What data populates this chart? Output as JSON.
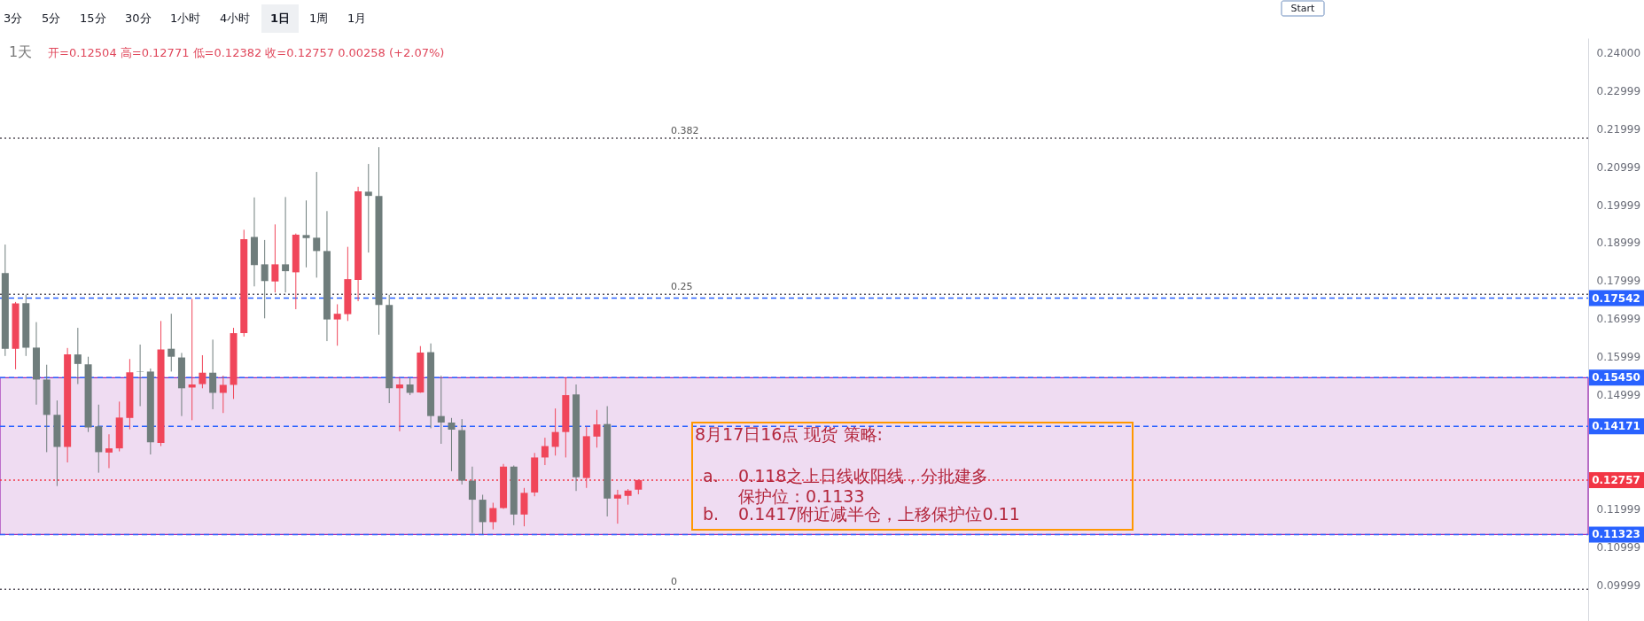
{
  "chart_data": {
    "type": "candlestick",
    "title": "1天",
    "subtitle": "开=0.12504 高=0.12771 低=0.12382 收=0.12757 0.00258 (+2.07%)",
    "categories": [
      null,
      null,
      null,
      null,
      null,
      null,
      null,
      null,
      null,
      null,
      null,
      null,
      null,
      null,
      null,
      null,
      null,
      null,
      null,
      null,
      null,
      null,
      null,
      null,
      null,
      null,
      null,
      null,
      null,
      null,
      null,
      null,
      null,
      null,
      null,
      null,
      null,
      null,
      null,
      null,
      null,
      null,
      null,
      null,
      null,
      null,
      null,
      null,
      null,
      null,
      null,
      null,
      null,
      null,
      null,
      null,
      null,
      null,
      null,
      null,
      null,
      null,
      null,
      null,
      null,
      null,
      null,
      null,
      null,
      null,
      null,
      null,
      null,
      null,
      null,
      null,
      null,
      null,
      null,
      null,
      null,
      null,
      null,
      null,
      null,
      null,
      null,
      null,
      null,
      null,
      null,
      null,
      null,
      null,
      null,
      null,
      null,
      null,
      null,
      null,
      null,
      null,
      null,
      null,
      null,
      null,
      null,
      null,
      null,
      null,
      null,
      null,
      null,
      null,
      null,
      null,
      null,
      null,
      null,
      null,
      null,
      null,
      null,
      null,
      null,
      null,
      null,
      null,
      null,
      null,
      null,
      null,
      null,
      null,
      null,
      null,
      null,
      null,
      null,
      null,
      null,
      null,
      null,
      null,
      null,
      null,
      null,
      null,
      null,
      null,
      null,
      null,
      null
    ],
    "ohlc": [
      [
        0.182,
        0.1895,
        0.1602,
        0.1621
      ],
      [
        0.1621,
        0.1744,
        0.1567,
        0.174
      ],
      [
        0.1741,
        0.1763,
        0.1602,
        0.1624
      ],
      [
        0.1624,
        0.1691,
        0.1474,
        0.154
      ],
      [
        0.154,
        0.1579,
        0.1349,
        0.1447
      ],
      [
        0.1447,
        0.1485,
        0.126,
        0.1363
      ],
      [
        0.1363,
        0.1623,
        0.1322,
        0.1606
      ],
      [
        0.1606,
        0.1676,
        0.1528,
        0.1581
      ],
      [
        0.158,
        0.16,
        0.1402,
        0.1414
      ],
      [
        0.1417,
        0.1474,
        0.1295,
        0.1349
      ],
      [
        0.1348,
        0.1396,
        0.1307,
        0.1359
      ],
      [
        0.1359,
        0.1482,
        0.1351,
        0.144
      ],
      [
        0.1439,
        0.1594,
        0.1409,
        0.1559
      ],
      [
        0.1561,
        0.1632,
        0.147,
        0.156
      ],
      [
        0.1561,
        0.1569,
        0.1343,
        0.1375
      ],
      [
        0.1373,
        0.1694,
        0.1365,
        0.1619
      ],
      [
        0.1621,
        0.1713,
        0.1561,
        0.16
      ],
      [
        0.1598,
        0.161,
        0.1444,
        0.1517
      ],
      [
        0.1519,
        0.1752,
        0.1433,
        0.1527
      ],
      [
        0.1528,
        0.1604,
        0.1517,
        0.1558
      ],
      [
        0.1558,
        0.1645,
        0.1462,
        0.1505
      ],
      [
        0.1505,
        0.155,
        0.1452,
        0.1526
      ],
      [
        0.1526,
        0.1676,
        0.1489,
        0.1662
      ],
      [
        0.1662,
        0.1934,
        0.1653,
        0.1909
      ],
      [
        0.1915,
        0.2019,
        0.1785,
        0.1841
      ],
      [
        0.1843,
        0.1907,
        0.1701,
        0.1799
      ],
      [
        0.1798,
        0.1948,
        0.1769,
        0.1843
      ],
      [
        0.1843,
        0.202,
        0.1769,
        0.1825
      ],
      [
        0.1822,
        0.1924,
        0.1725,
        0.1921
      ],
      [
        0.192,
        0.2011,
        0.1835,
        0.1912
      ],
      [
        0.1913,
        0.2086,
        0.1808,
        0.1878
      ],
      [
        0.1878,
        0.1983,
        0.1641,
        0.1698
      ],
      [
        0.1698,
        0.1738,
        0.1629,
        0.1713
      ],
      [
        0.1712,
        0.1889,
        0.1694,
        0.1804
      ],
      [
        0.1802,
        0.2047,
        0.1746,
        0.2035
      ],
      [
        0.2034,
        0.2107,
        0.1874,
        0.2023
      ],
      [
        0.2023,
        0.2151,
        0.1658,
        0.1736
      ],
      [
        0.1736,
        0.1763,
        0.1478,
        0.1517
      ],
      [
        0.1517,
        0.1545,
        0.1404,
        0.1527
      ],
      [
        0.1527,
        0.1545,
        0.1499,
        0.1505
      ],
      [
        0.1506,
        0.1628,
        0.1505,
        0.1611
      ],
      [
        0.1612,
        0.1635,
        0.1412,
        0.1444
      ],
      [
        0.1444,
        0.155,
        0.1371,
        0.1427
      ],
      [
        0.1427,
        0.1439,
        0.1299,
        0.1408
      ],
      [
        0.1407,
        0.1436,
        0.1264,
        0.1274
      ],
      [
        0.1274,
        0.1311,
        0.1136,
        0.1224
      ],
      [
        0.1224,
        0.1237,
        0.1133,
        0.1165
      ],
      [
        0.1165,
        0.1216,
        0.1146,
        0.1202
      ],
      [
        0.1202,
        0.1318,
        0.12,
        0.1311
      ],
      [
        0.1311,
        0.1314,
        0.1157,
        0.1185
      ],
      [
        0.1185,
        0.1255,
        0.1154,
        0.1242
      ],
      [
        0.1243,
        0.1347,
        0.1233,
        0.1335
      ],
      [
        0.1335,
        0.1387,
        0.1315,
        0.1365
      ],
      [
        0.1363,
        0.1464,
        0.134,
        0.1402
      ],
      [
        0.1402,
        0.1544,
        0.1335,
        0.1499
      ],
      [
        0.1501,
        0.1527,
        0.1247,
        0.1283
      ],
      [
        0.1281,
        0.1416,
        0.1255,
        0.1391
      ],
      [
        0.139,
        0.146,
        0.1361,
        0.1422
      ],
      [
        0.1423,
        0.147,
        0.118,
        0.1227
      ],
      [
        0.1227,
        0.125,
        0.1161,
        0.1237
      ],
      [
        0.1234,
        0.1252,
        0.1211,
        0.1248
      ],
      [
        0.12504,
        0.12771,
        0.12382,
        0.12757
      ],
      null,
      null,
      null,
      null,
      null,
      null,
      null,
      null,
      null,
      null,
      null,
      null,
      null,
      null,
      null,
      null,
      null,
      null,
      null,
      null,
      null,
      null,
      null,
      null,
      null,
      null,
      null,
      null,
      null,
      null,
      null,
      null,
      null,
      null,
      null,
      null,
      null,
      null,
      null,
      null,
      null,
      null,
      null,
      null,
      null,
      null,
      null,
      null,
      null,
      null,
      null,
      null,
      null,
      null,
      null,
      null,
      null,
      null,
      null,
      null,
      null,
      null,
      null,
      null,
      null,
      null,
      null,
      null,
      null,
      null,
      null,
      null,
      null,
      null,
      null,
      null,
      null,
      null,
      null,
      null,
      null,
      null,
      null,
      null,
      null,
      null,
      null,
      null,
      null,
      null,
      null
    ],
    "colors": [
      "#6f7d7c",
      "#f0465a",
      "#6f7d7c",
      "#6f7d7c",
      "#6f7d7c",
      "#6f7d7c",
      "#f0465a",
      "#6f7d7c",
      "#6f7d7c",
      "#6f7d7c",
      "#f0465a",
      "#f0465a",
      "#f0465a",
      "#6f7d7c",
      "#6f7d7c",
      "#f0465a",
      "#6f7d7c",
      "#6f7d7c",
      "#f0465a",
      "#f0465a",
      "#6f7d7c",
      "#f0465a",
      "#f0465a",
      "#f0465a",
      "#6f7d7c",
      "#6f7d7c",
      "#f0465a",
      "#6f7d7c",
      "#f0465a",
      "#6f7d7c",
      "#6f7d7c",
      "#6f7d7c",
      "#f0465a",
      "#f0465a",
      "#f0465a",
      "#6f7d7c",
      "#6f7d7c",
      "#6f7d7c",
      "#f0465a",
      "#6f7d7c",
      "#f0465a",
      "#6f7d7c",
      "#6f7d7c",
      "#6f7d7c",
      "#6f7d7c",
      "#6f7d7c",
      "#6f7d7c",
      "#f0465a",
      "#f0465a",
      "#6f7d7c",
      "#f0465a",
      "#f0465a",
      "#f0465a",
      "#f0465a",
      "#f0465a",
      "#6f7d7c",
      "#f0465a",
      "#f0465a",
      "#6f7d7c",
      "#f0465a",
      "#f0465a",
      "#f0465a",
      null,
      null,
      null,
      null,
      null,
      null,
      null,
      null,
      null,
      null,
      null,
      null,
      null,
      null,
      null,
      null,
      null,
      null,
      null,
      null,
      null,
      null,
      null,
      null,
      null,
      null,
      null,
      null,
      null,
      null,
      null,
      null,
      null,
      null,
      null,
      null,
      null,
      null,
      null,
      null,
      null,
      null,
      null,
      null,
      null,
      null,
      null,
      null,
      null,
      null,
      null,
      null,
      null,
      null,
      null,
      null,
      null,
      null,
      null,
      null,
      null,
      null,
      null,
      null,
      null,
      null,
      null,
      null,
      null,
      null,
      null,
      null,
      null,
      null,
      null,
      null,
      null,
      null,
      null,
      null,
      null,
      null,
      null,
      null,
      null,
      null,
      null,
      null,
      null,
      null,
      null
    ],
    "ylim": [
      0.0905,
      0.2438
    ],
    "yticks": [
      {
        "value": 0.24,
        "label": "0.24000"
      },
      0.22999,
      0.21999,
      0.20999,
      0.19999,
      0.18999,
      0.17999,
      0.16999,
      0.15999,
      0.14999,
      0.11999,
      0.10999,
      0.09999
    ],
    "bands": [
      {
        "axis": "y",
        "from": 0.11323,
        "to": 0.1545,
        "color": "#9c27b0"
      }
    ],
    "ref_lines": [
      {
        "axis": "y",
        "value": 0.2175,
        "color": "#55505a",
        "line_style": "dotted"
      },
      {
        "axis": "y",
        "value": 0.1764,
        "color": "#55505a",
        "line_style": "dotted"
      },
      {
        "axis": "y",
        "value": 0.0988,
        "color": "#55505a",
        "line_style": "dotted"
      },
      {
        "axis": "y",
        "value": 0.17542,
        "label": "0.17542",
        "color": "#2962ff",
        "line_style": "dashed"
      },
      {
        "axis": "y",
        "value": 0.1545,
        "label": "0.15450",
        "color": "#2962ff",
        "line_style": "dashed"
      },
      {
        "axis": "y",
        "value": 0.14171,
        "label": "0.14171",
        "color": "#2962ff",
        "line_style": "dashed"
      },
      {
        "axis": "y",
        "value": 0.11323,
        "label": "0.11323",
        "color": "#2962ff",
        "line_style": "dashed"
      },
      {
        "axis": "y",
        "value": 0.12757,
        "label": "0.12757",
        "color": "#f23645",
        "line_style": "dotted"
      }
    ],
    "annotations": [
      "3分",
      "5分",
      "15分",
      "30分",
      "1小时",
      "4小时",
      "1日",
      "1周",
      "1月",
      "Start",
      "8月17日16点 现货 策略:",
      "a.",
      "0.118之上日线收阳线，分批建多",
      "保护位：0.1133",
      "b.",
      "0.1417附近减半仓，上移保护位0.11",
      {
        "text": "0.382",
        "y": 0.2175
      },
      {
        "text": "0.25",
        "y": 0.1764
      },
      {
        "text": "0",
        "y": 0.0988
      }
    ]
  }
}
